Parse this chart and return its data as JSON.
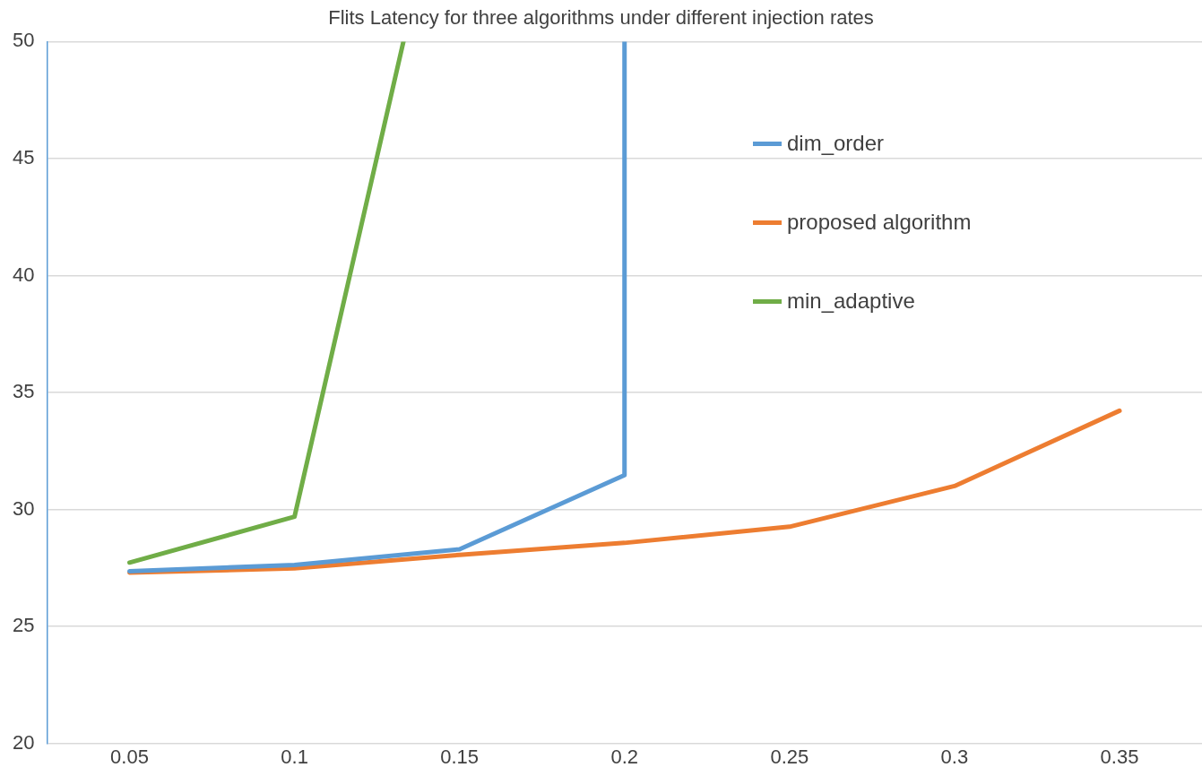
{
  "chart_data": {
    "type": "line",
    "title": "Flits Latency for three algorithms under different injection rates",
    "xlim": [
      0.025,
      0.375
    ],
    "xticks": [
      0.05,
      0.1,
      0.15,
      0.2,
      0.25,
      0.3,
      0.35
    ],
    "ylim": [
      20,
      50
    ],
    "yticks": [
      20,
      25,
      30,
      35,
      40,
      45,
      50
    ],
    "grid": "y",
    "legend": "right",
    "marker": "none",
    "line_style": "solid",
    "series": [
      {
        "name": "dim_order",
        "color": "#5b9bd5",
        "x": [
          0.05,
          0.1,
          0.15,
          0.2,
          0.2
        ],
        "values": [
          27.36,
          27.63,
          28.3,
          31.47,
          50
        ]
      },
      {
        "name": "proposed algorithm",
        "color": "#ed7d31",
        "x": [
          0.05,
          0.1,
          0.15,
          0.2,
          0.25,
          0.3,
          0.35
        ],
        "values": [
          27.3,
          27.48,
          28.06,
          28.57,
          29.26,
          31.0,
          34.22
        ]
      },
      {
        "name": "min_adaptive",
        "color": "#70ad47",
        "x": [
          0.05,
          0.1,
          0.133
        ],
        "values": [
          27.73,
          29.69,
          50
        ]
      }
    ]
  }
}
